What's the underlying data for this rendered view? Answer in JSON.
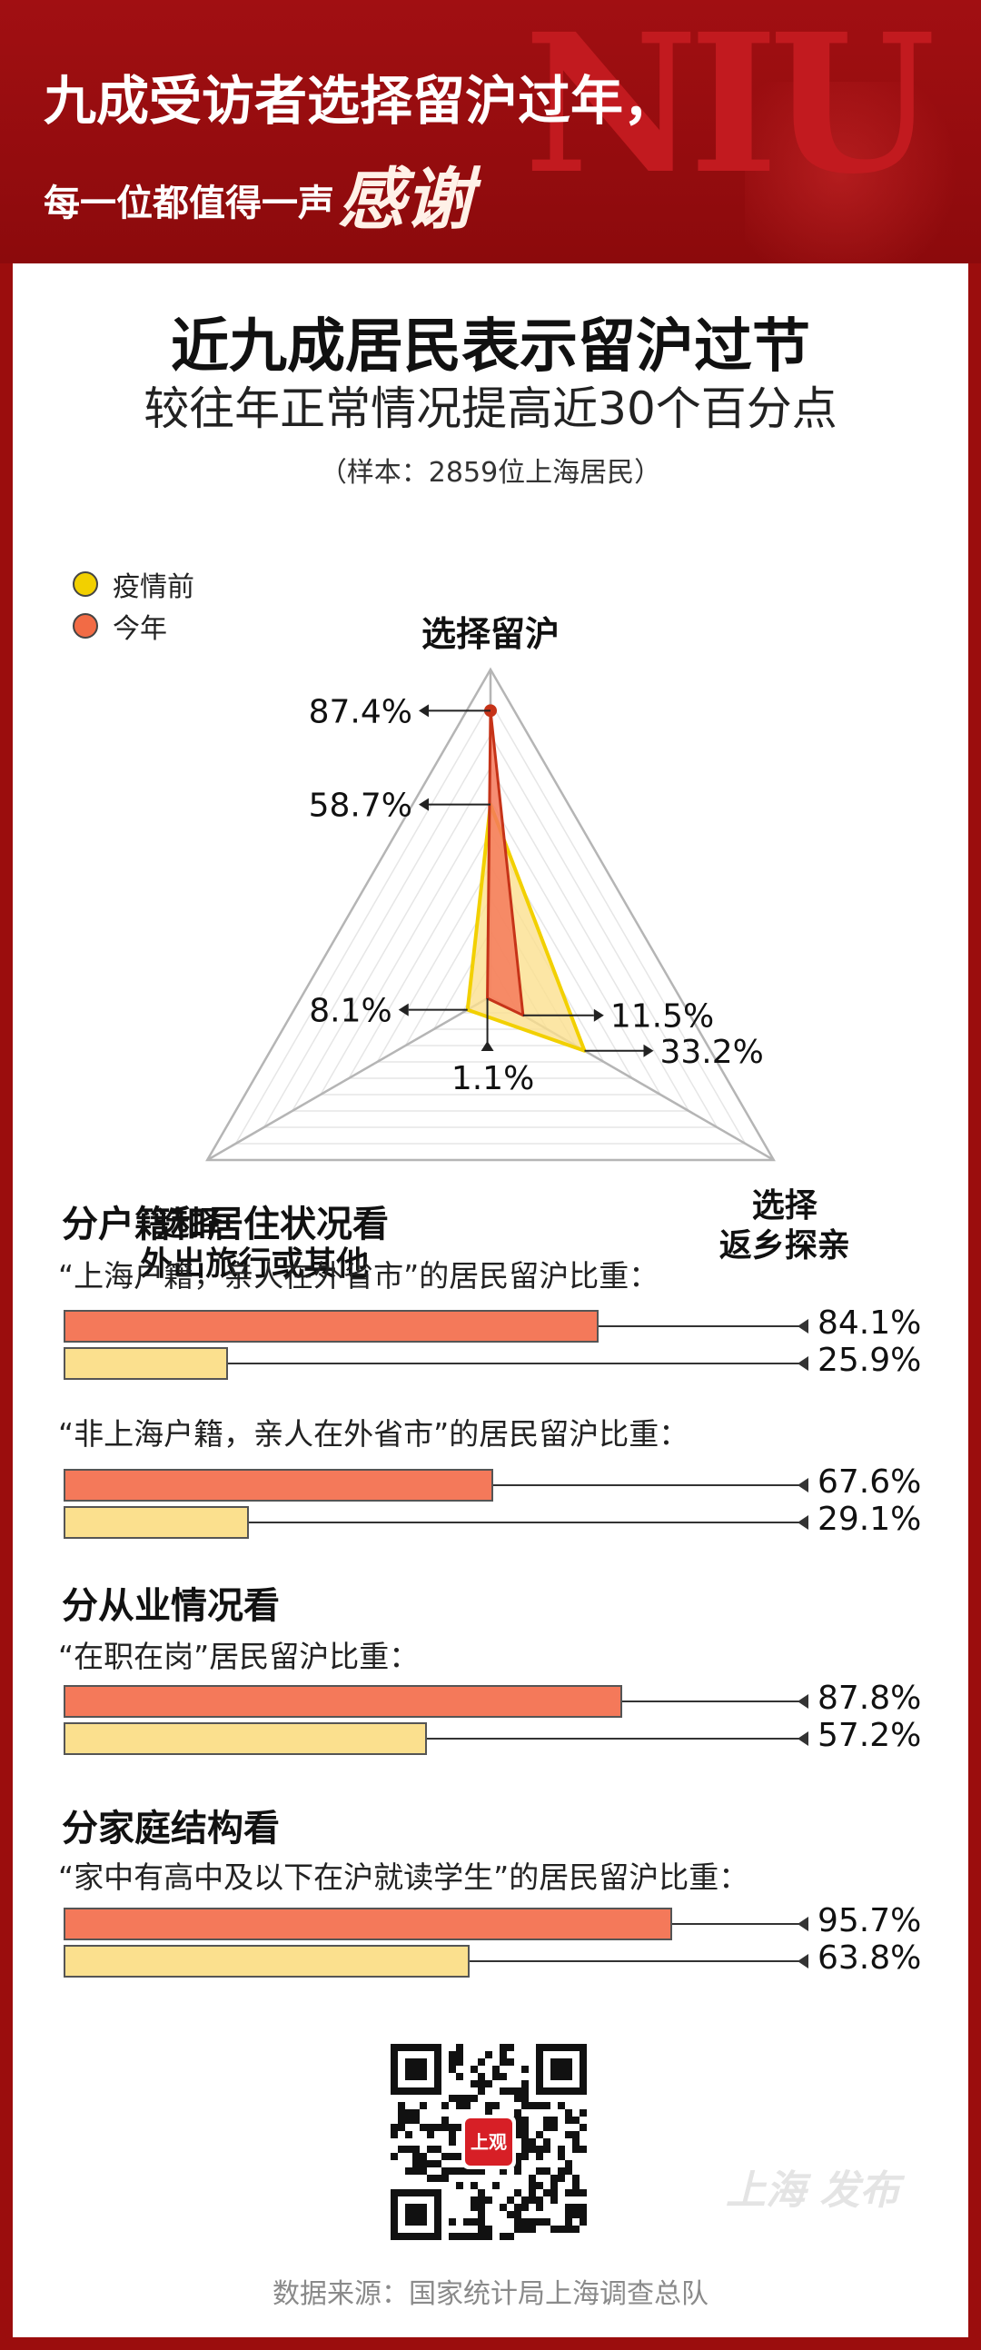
{
  "header": {
    "headline_line1": "九成受访者选择留沪过年，",
    "headline_line2_prefix": "每一位都值得一声",
    "headline_line2_script": "感谢",
    "decoration_text": "NIU"
  },
  "title": {
    "main": "近九成居民表示留沪过节",
    "sub": "较往年正常情况提高近30个百分点",
    "sample": "（样本：2859位上海居民）"
  },
  "legend": [
    {
      "label": "疫情前",
      "color": "#f2d000"
    },
    {
      "label": "今年",
      "color": "#f26b45"
    }
  ],
  "colors": {
    "now_fill": "#f4795a",
    "now_line": "#c63318",
    "pre_fill": "#fbe08e",
    "pre_line": "#f2d000",
    "accent_red": "#9b0d0d"
  },
  "chart_data": [
    {
      "type": "radar",
      "axes": [
        "选择留沪",
        "选择返乡探亲",
        "选择外出旅行或其他"
      ],
      "axis_labels": {
        "top": "选择留沪",
        "right_line1": "选择",
        "right_line2": "返乡探亲",
        "left_line1": "选择",
        "left_line2": "外出旅行或其他"
      },
      "range": [
        0,
        100
      ],
      "series": [
        {
          "name": "疫情前",
          "values": [
            58.7,
            33.2,
            8.1
          ]
        },
        {
          "name": "今年",
          "values": [
            87.4,
            11.5,
            1.1
          ]
        }
      ],
      "value_labels": [
        "87.4%",
        "58.7%",
        "11.5%",
        "33.2%",
        "8.1%",
        "1.1%"
      ]
    },
    {
      "type": "bar",
      "orientation": "horizontal",
      "series_names": [
        "今年",
        "疫情前"
      ],
      "xlim": [
        0,
        100
      ],
      "groups": [
        {
          "section_title": "分户籍和居住状况看",
          "label": "“上海户籍，亲人在外省市”的居民留沪比重：",
          "values": [
            84.1,
            25.9
          ],
          "value_labels": [
            "84.1%",
            "25.9%"
          ]
        },
        {
          "section_title": "",
          "label": "“非上海户籍，亲人在外省市”的居民留沪比重：",
          "values": [
            67.6,
            29.1
          ],
          "value_labels": [
            "67.6%",
            "29.1%"
          ]
        },
        {
          "section_title": "分从业情况看",
          "label": "“在职在岗”居民留沪比重：",
          "values": [
            87.8,
            57.2
          ],
          "value_labels": [
            "87.8%",
            "57.2%"
          ]
        },
        {
          "section_title": "分家庭结构看",
          "label": "“家中有高中及以下在沪就读学生”的居民留沪比重：",
          "values": [
            95.7,
            63.8
          ],
          "value_labels": [
            "95.7%",
            "63.8%"
          ]
        }
      ]
    }
  ],
  "footer": {
    "qr_badge": "上观",
    "watermark": "上海 发布",
    "source": "数据来源：国家统计局上海调查总队"
  }
}
